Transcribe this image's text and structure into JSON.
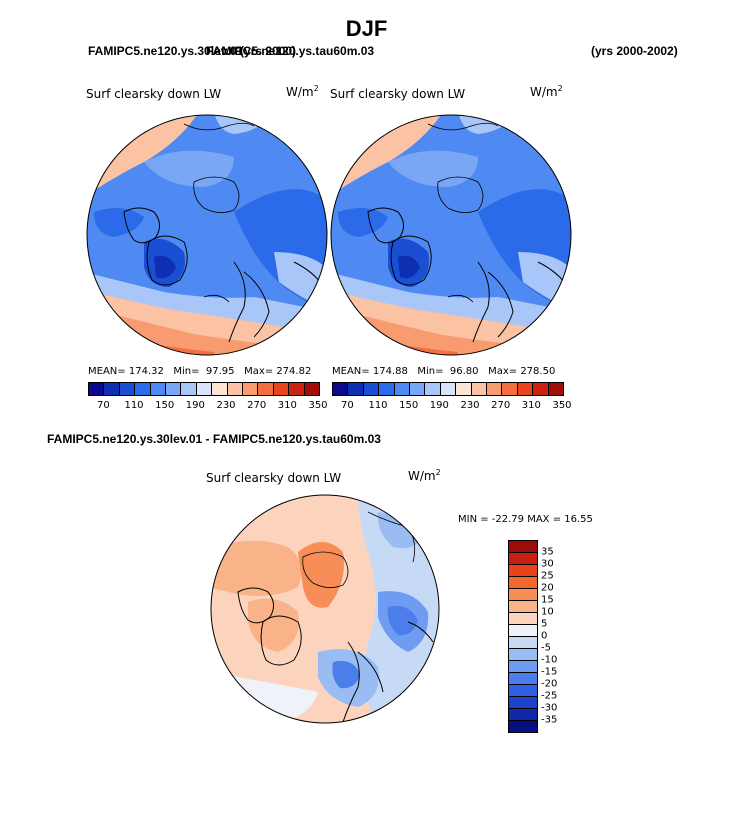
{
  "title": "DJF",
  "top": {
    "case_left": "FAMIPC5.ne120.ys.30lev.01",
    "case_overlap": "FAMIPC5.ne120.ys.tau60m.03",
    "years_left": "(yrs 2000)",
    "years_right": "(yrs 2000-2002)"
  },
  "panels": [
    {
      "label": "Surf clearsky down LW",
      "units": "W/m",
      "units_exp": "2",
      "mean_label": "MEAN=",
      "mean": "174.32",
      "min_label": "Min=",
      "min": "97.95",
      "max_label": "Max=",
      "max": "274.82"
    },
    {
      "label": "Surf clearsky down LW",
      "units": "W/m",
      "units_exp": "2",
      "mean_label": "MEAN=",
      "mean": "174.88",
      "min_label": "Min=",
      "min": "96.80",
      "max_label": "Max=",
      "max": "278.50"
    }
  ],
  "abs_colorbar": {
    "colors": [
      "#0a0a8c",
      "#0d2fb0",
      "#1a4fd4",
      "#2b6ae8",
      "#4f8af2",
      "#7aa7f5",
      "#a8c6f7",
      "#d7e5fa",
      "#fde5d6",
      "#fbc3a4",
      "#f89c70",
      "#f46f40",
      "#e8441d",
      "#c82411",
      "#a00d0a"
    ],
    "ticks": [
      "70",
      "110",
      "150",
      "190",
      "230",
      "270",
      "310",
      "350"
    ]
  },
  "diff": {
    "title": "FAMIPC5.ne120.ys.30lev.01 - FAMIPC5.ne120.ys.tau60m.03",
    "label": "Surf clearsky down LW",
    "units": "W/m",
    "units_exp": "2",
    "minmax": "MIN = -22.79 MAX =  16.55"
  },
  "diff_colorbar": {
    "colors": [
      "#9c0d0a",
      "#c81f10",
      "#e8431b",
      "#f4682f",
      "#f88e57",
      "#fab389",
      "#fcd4bd",
      "#eff2f9",
      "#c6daf6",
      "#99bcf3",
      "#6f9cf0",
      "#4c7eeb",
      "#2f5fe3",
      "#1d43cc",
      "#1129a8",
      "#080f82"
    ],
    "ticks": [
      "35",
      "30",
      "25",
      "20",
      "15",
      "10",
      "5",
      "0",
      "-5",
      "-10",
      "-15",
      "-20",
      "-25",
      "-30",
      "-35"
    ]
  }
}
